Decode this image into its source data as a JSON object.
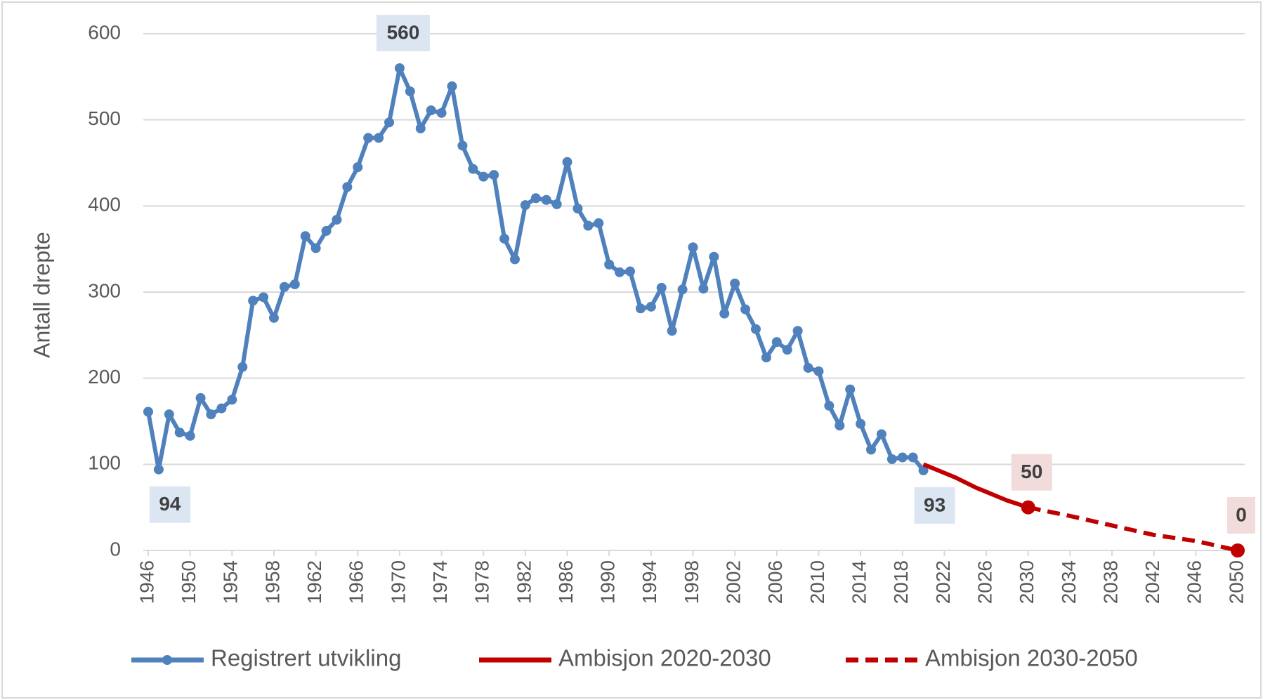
{
  "chart_data": {
    "type": "line",
    "y_label": "Antall drepte",
    "xlim": [
      1946,
      2050
    ],
    "xticks": [
      1946,
      1950,
      1954,
      1958,
      1962,
      1966,
      1970,
      1974,
      1978,
      1982,
      1986,
      1990,
      1994,
      1998,
      2002,
      2006,
      2010,
      2014,
      2018,
      2022,
      2026,
      2030,
      2034,
      2038,
      2042,
      2046,
      2050
    ],
    "ylim": [
      0,
      600
    ],
    "yticks": [
      0,
      100,
      200,
      300,
      400,
      500,
      600
    ],
    "grid": true,
    "legend": "bottom",
    "series": [
      {
        "name": "Registrert utvikling",
        "color": "#4f81bd",
        "marker": true,
        "dash": false,
        "x": [
          1946,
          1947,
          1948,
          1949,
          1950,
          1951,
          1952,
          1953,
          1954,
          1955,
          1956,
          1957,
          1958,
          1959,
          1960,
          1961,
          1962,
          1963,
          1964,
          1965,
          1966,
          1967,
          1968,
          1969,
          1970,
          1971,
          1972,
          1973,
          1974,
          1975,
          1976,
          1977,
          1978,
          1979,
          1980,
          1981,
          1982,
          1983,
          1984,
          1985,
          1986,
          1987,
          1988,
          1989,
          1990,
          1991,
          1992,
          1993,
          1994,
          1995,
          1996,
          1997,
          1998,
          1999,
          2000,
          2001,
          2002,
          2003,
          2004,
          2005,
          2006,
          2007,
          2008,
          2009,
          2010,
          2011,
          2012,
          2013,
          2014,
          2015,
          2016,
          2017,
          2018,
          2019,
          2020
        ],
        "values": [
          161,
          94,
          158,
          137,
          133,
          177,
          158,
          165,
          175,
          213,
          290,
          294,
          270,
          306,
          309,
          365,
          351,
          371,
          384,
          422,
          445,
          479,
          479,
          497,
          560,
          533,
          490,
          511,
          508,
          539,
          470,
          443,
          434,
          436,
          362,
          338,
          401,
          409,
          407,
          402,
          451,
          397,
          377,
          380,
          332,
          323,
          324,
          281,
          283,
          305,
          255,
          303,
          352,
          304,
          341,
          275,
          310,
          280,
          257,
          224,
          242,
          233,
          255,
          212,
          208,
          168,
          145,
          187,
          147,
          117,
          135,
          106,
          108,
          108,
          93
        ],
        "value_labels": [
          null,
          "94",
          null,
          null,
          null,
          null,
          null,
          null,
          null,
          null,
          null,
          null,
          null,
          null,
          null,
          null,
          null,
          null,
          null,
          null,
          null,
          null,
          null,
          null,
          "560",
          null,
          null,
          null,
          null,
          null,
          null,
          null,
          null,
          null,
          null,
          null,
          null,
          null,
          null,
          null,
          null,
          null,
          null,
          null,
          null,
          null,
          null,
          null,
          null,
          null,
          null,
          null,
          null,
          null,
          null,
          null,
          null,
          null,
          null,
          null,
          null,
          null,
          null,
          null,
          null,
          null,
          null,
          null,
          null,
          null,
          null,
          null,
          null,
          null,
          "93"
        ]
      },
      {
        "name": "Ambisjon 2020-2030",
        "color": "#c00000",
        "marker": false,
        "dash": false,
        "x": [
          2020,
          2021,
          2022,
          2023,
          2024,
          2025,
          2026,
          2027,
          2028,
          2029,
          2030
        ],
        "values": [
          100,
          95,
          90,
          85,
          79,
          73,
          68,
          63,
          58,
          54,
          50
        ],
        "value_labels": [
          null,
          null,
          null,
          null,
          null,
          null,
          null,
          null,
          null,
          null,
          "50"
        ]
      },
      {
        "name": "Ambisjon 2030-2050",
        "color": "#c00000",
        "marker": false,
        "dash": true,
        "x": [
          2030,
          2034,
          2038,
          2042,
          2046,
          2050
        ],
        "values": [
          50,
          40,
          29,
          18,
          11,
          0
        ],
        "value_labels": [
          null,
          null,
          null,
          null,
          null,
          "0"
        ]
      }
    ]
  }
}
